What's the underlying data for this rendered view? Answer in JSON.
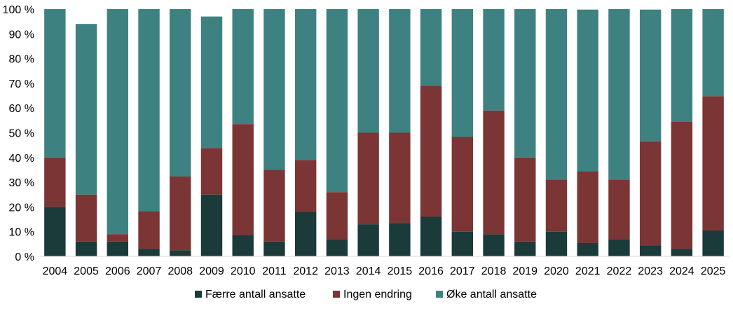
{
  "chart_data": {
    "type": "bar",
    "stacked": true,
    "categories": [
      "2004",
      "2005",
      "2006",
      "2007",
      "2008",
      "2009",
      "2010",
      "2011",
      "2012",
      "2013",
      "2014",
      "2015",
      "2016",
      "2017",
      "2018",
      "2019",
      "2020",
      "2021",
      "2022",
      "2023",
      "2024",
      "2025"
    ],
    "series": [
      {
        "name": "Færre antall ansatte",
        "color": "#1b3a3a",
        "values": [
          20,
          6,
          6,
          3,
          2.5,
          25,
          8.5,
          6,
          18,
          7,
          13,
          13.5,
          16,
          10,
          9,
          6,
          10,
          5.5,
          7,
          4.5,
          3,
          10.5
        ]
      },
      {
        "name": "Ingen endring",
        "color": "#7b3534",
        "values": [
          20,
          19,
          3,
          15.3,
          29.8,
          18.8,
          45,
          29,
          21,
          19,
          37,
          36.5,
          53,
          38.3,
          50,
          34,
          21,
          29,
          24,
          42,
          51.5,
          54.3
        ]
      },
      {
        "name": "Øke antall ansatte",
        "color": "#3d8281",
        "values": [
          60,
          69,
          91,
          81.7,
          67.7,
          53.2,
          46.5,
          65,
          61,
          74,
          50,
          50,
          31,
          51.7,
          41,
          60,
          69,
          65.3,
          69,
          53.3,
          45.5,
          35.2
        ]
      }
    ],
    "yticks": [
      "0 %",
      "10 %",
      "20 %",
      "30 %",
      "40 %",
      "50 %",
      "60 %",
      "70 %",
      "80 %",
      "90 %",
      "100 %"
    ],
    "ylim": [
      0,
      100
    ],
    "grid": false,
    "legend_position": "bottom"
  }
}
